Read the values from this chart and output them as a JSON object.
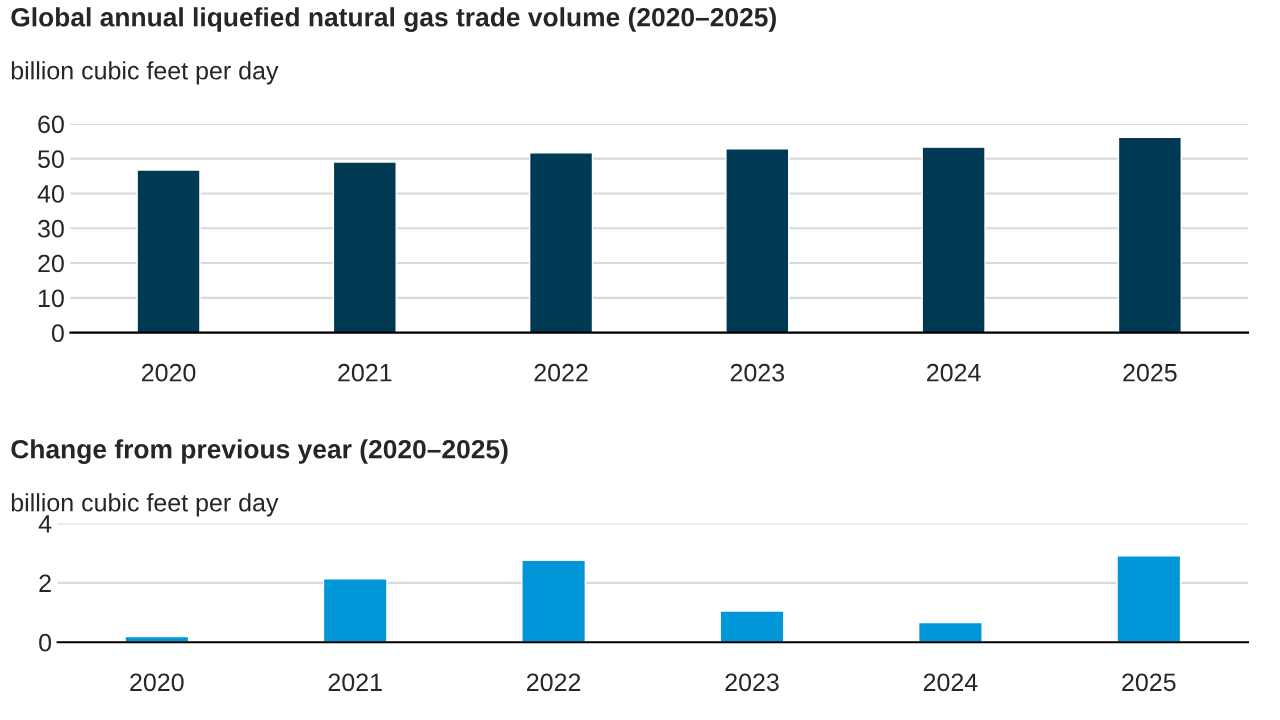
{
  "chart_data": [
    {
      "type": "bar",
      "title": "Global annual liquefied natural gas trade volume (2020–2025)",
      "subtitle": "billion cubic feet per day",
      "categories": [
        "2020",
        "2021",
        "2022",
        "2023",
        "2024",
        "2025"
      ],
      "values": [
        46.7,
        49.0,
        51.7,
        52.8,
        53.3,
        56.1
      ],
      "color": "#003953",
      "ylim": [
        0,
        60
      ],
      "yticks": [
        0,
        10,
        20,
        30,
        40,
        50,
        60
      ],
      "grid": "y"
    },
    {
      "type": "bar",
      "title": "Change from previous year (2020–2025)",
      "subtitle": "billion cubic feet per day",
      "categories": [
        "2020",
        "2021",
        "2022",
        "2023",
        "2024",
        "2025"
      ],
      "values": [
        0.19,
        2.14,
        2.76,
        1.05,
        0.66,
        2.91
      ],
      "color": "#0096d7",
      "ylim": [
        0,
        4
      ],
      "yticks": [
        0,
        2,
        4
      ],
      "grid": "y"
    }
  ]
}
